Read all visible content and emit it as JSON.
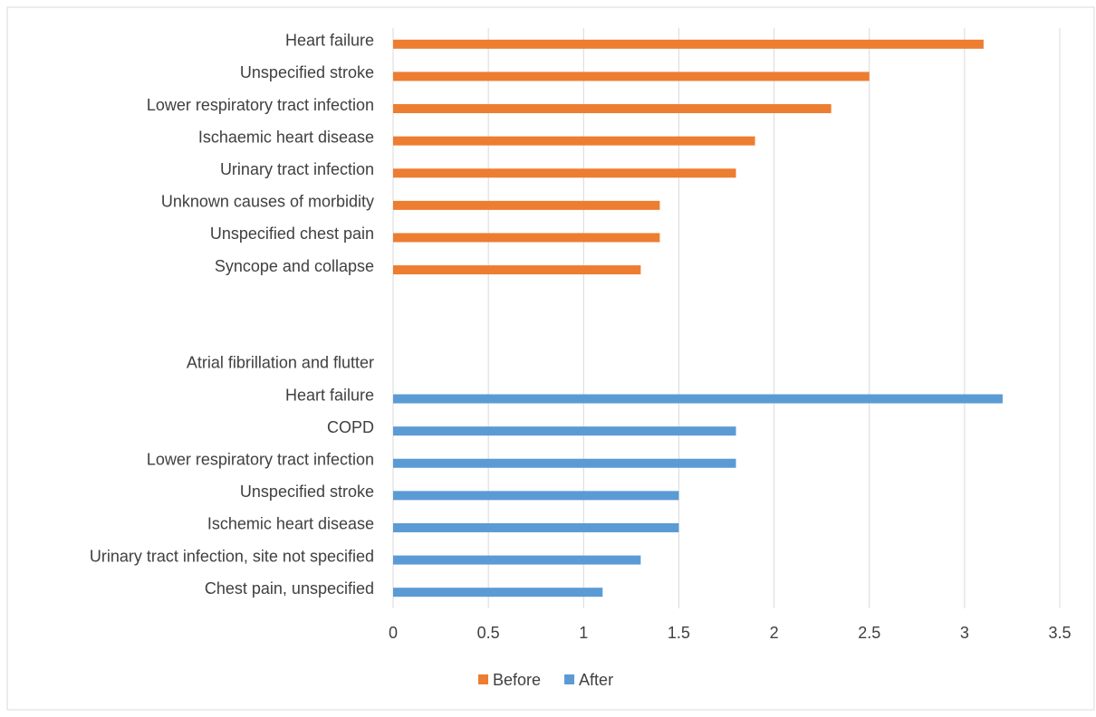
{
  "chart_data": {
    "type": "bar",
    "orientation": "horizontal",
    "categories": [
      "Heart failure",
      "Unspecified stroke",
      "Lower respiratory tract infection",
      "Ischaemic heart disease",
      "Urinary tract infection",
      "Unknown causes of morbidity",
      "Unspecified chest pain",
      "Syncope and collapse",
      null,
      null,
      "Atrial fibrillation and flutter",
      "Heart failure",
      "COPD",
      "Lower respiratory tract infection",
      "Unspecified stroke",
      "Ischemic heart disease",
      "Urinary tract infection, site not specified",
      "Chest pain, unspecified"
    ],
    "series": [
      {
        "name": "Before",
        "color": "#ed7d31",
        "values": [
          3.1,
          2.5,
          2.3,
          1.9,
          1.8,
          1.4,
          1.4,
          1.3,
          null,
          null,
          null,
          null,
          null,
          null,
          null,
          null,
          null,
          null
        ]
      },
      {
        "name": "After",
        "color": "#5b9bd5",
        "values": [
          null,
          null,
          null,
          null,
          null,
          null,
          null,
          null,
          null,
          null,
          null,
          3.2,
          1.8,
          1.8,
          1.5,
          1.5,
          1.3,
          1.1
        ]
      }
    ],
    "xlim": [
      0,
      3.5
    ],
    "xticks": [
      0,
      0.5,
      1,
      1.5,
      2,
      2.5,
      3,
      3.5
    ],
    "grid": true,
    "legend": "bottom"
  }
}
